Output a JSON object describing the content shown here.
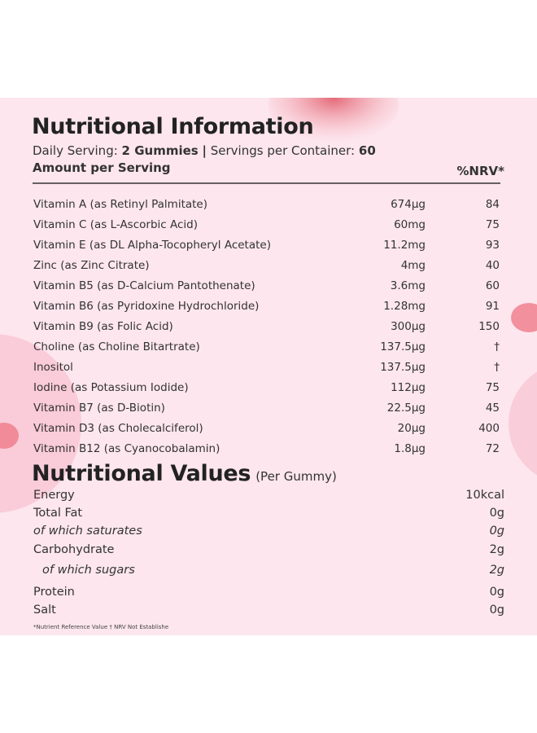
{
  "header": {
    "title": "Nutritional Information",
    "daily_serving_label": "Daily Serving:",
    "daily_serving": "2 Gummies",
    "separator": "|",
    "servings_label": "Servings per Container:",
    "servings": "60",
    "amount_label": "Amount per Serving",
    "nrv_label": "%NRV*"
  },
  "table": {
    "rows": [
      [
        "Vitamin A (as Retinyl Palmitate)",
        "674µg",
        "84"
      ],
      [
        "Vitamin C (as L-Ascorbic Acid)",
        "60mg",
        "75"
      ],
      [
        "Vitamin E (as DL Alpha-Tocopheryl Acetate)",
        "11.2mg",
        "93"
      ],
      [
        "Zinc (as Zinc Citrate)",
        "4mg",
        "40"
      ],
      [
        "Vitamin B5 (as D-Calcium Pantothenate)",
        "3.6mg",
        "60"
      ],
      [
        "Vitamin B6 (as Pyridoxine Hydrochloride)",
        "1.28mg",
        "91"
      ],
      [
        "Vitamin B9 (as Folic Acid)",
        "300µg",
        "150"
      ],
      [
        "Choline (as Choline Bitartrate)",
        "137.5µg",
        "†"
      ],
      [
        "Inositol",
        "137.5µg",
        "†"
      ],
      [
        "Iodine (as Potassium Iodide)",
        "112µg",
        "75"
      ],
      [
        "Vitamin B7 (as D-Biotin)",
        "22.5µg",
        "45"
      ],
      [
        "Vitamin D3 (as Cholecalciferol)",
        "20µg",
        "400"
      ],
      [
        "Vitamin B12 (as Cyanocobalamin)",
        "1.8µg",
        "72"
      ]
    ]
  },
  "values": {
    "title": "Nutritional Values",
    "subtitle": "(Per Gummy)",
    "rows": [
      {
        "name": "Energy",
        "value": "10kcal"
      },
      {
        "name": "Total Fat",
        "value": "0g"
      },
      {
        "name": "of which saturates",
        "value": "0g",
        "italic": true
      },
      {
        "name": "Carbohydrate",
        "value": "2g"
      },
      {
        "name": "of which sugars",
        "value": "2g",
        "italic": true,
        "indent": true
      },
      {
        "name": "Protein",
        "value": "0g"
      },
      {
        "name": "Salt",
        "value": "0g"
      }
    ]
  },
  "footnote": "*Nutrient Reference Value † NRV Not Establishe"
}
